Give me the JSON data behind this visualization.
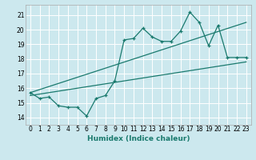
{
  "xlabel": "Humidex (Indice chaleur)",
  "bg_color": "#cce8ee",
  "grid_color": "#ffffff",
  "line_color": "#1a7a6e",
  "xlim": [
    -0.5,
    23.5
  ],
  "ylim": [
    13.5,
    21.7
  ],
  "xticks": [
    0,
    1,
    2,
    3,
    4,
    5,
    6,
    7,
    8,
    9,
    10,
    11,
    12,
    13,
    14,
    15,
    16,
    17,
    18,
    19,
    20,
    21,
    22,
    23
  ],
  "yticks": [
    14,
    15,
    16,
    17,
    18,
    19,
    20,
    21
  ],
  "line1_x": [
    0,
    1,
    2,
    3,
    4,
    5,
    6,
    7,
    8,
    9,
    10,
    11,
    12,
    13,
    14,
    15,
    16,
    17,
    18,
    19,
    20,
    21,
    22,
    23
  ],
  "line1_y": [
    15.7,
    15.3,
    15.4,
    14.8,
    14.7,
    14.7,
    14.1,
    15.3,
    15.5,
    16.5,
    19.3,
    19.4,
    20.1,
    19.5,
    19.2,
    19.2,
    19.9,
    21.2,
    20.5,
    18.9,
    20.3,
    18.1,
    18.1,
    18.1
  ],
  "line2_x": [
    0,
    23
  ],
  "line2_y": [
    15.5,
    17.8
  ],
  "line3_x": [
    0,
    23
  ],
  "line3_y": [
    15.7,
    20.5
  ]
}
